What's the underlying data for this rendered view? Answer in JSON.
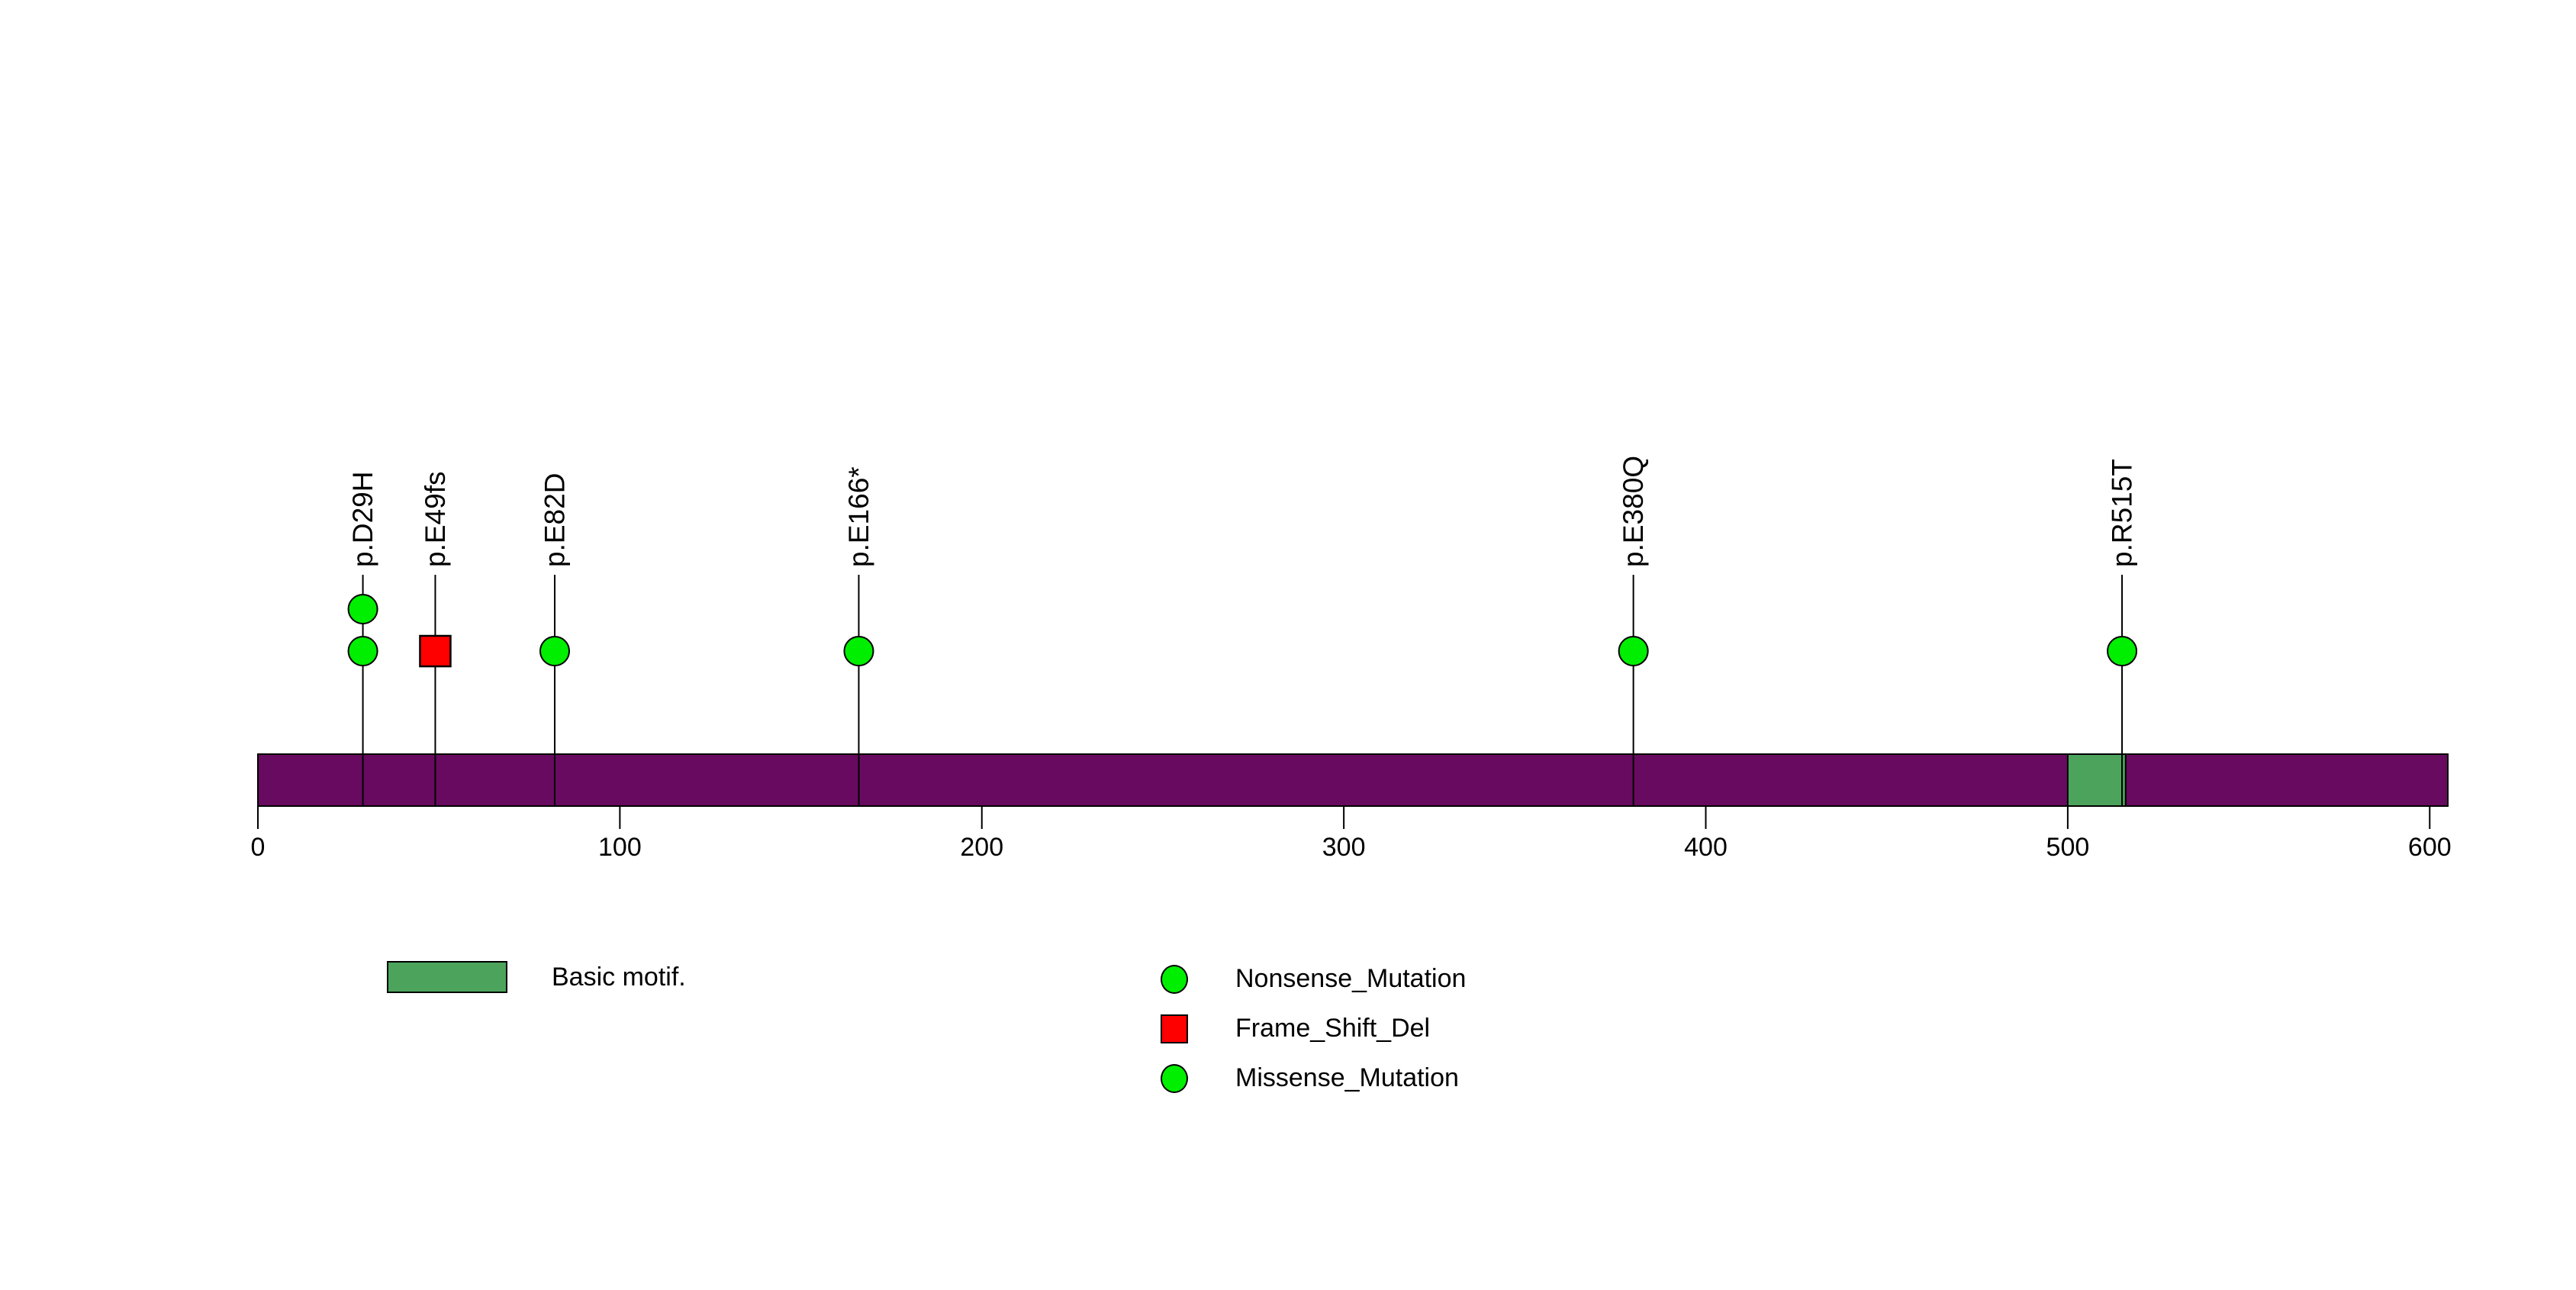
{
  "chart_data": {
    "type": "lollipop",
    "title": "",
    "xlabel": "",
    "ylabel": "",
    "axis": {
      "min": 0,
      "max": 605,
      "ticks": [
        0,
        100,
        200,
        300,
        400,
        500,
        600
      ],
      "tick_labels": [
        "0",
        "100",
        "200",
        "300",
        "400",
        "500",
        "600"
      ]
    },
    "protein": {
      "length": 605,
      "backbone_color": "#680A5F",
      "domains": [
        {
          "name": "Basic motif.",
          "start": 500,
          "end": 516,
          "color": "#4CA45C"
        }
      ]
    },
    "mutations": [
      {
        "label": "p.D29H",
        "position": 29,
        "stack": [
          {
            "shape": "circle",
            "color": "#00EE00"
          },
          {
            "shape": "circle",
            "color": "#00EE00"
          }
        ]
      },
      {
        "label": "p.E49fs",
        "position": 49,
        "stack": [
          {
            "shape": "square",
            "color": "#FF0000"
          }
        ]
      },
      {
        "label": "p.E82D",
        "position": 82,
        "stack": [
          {
            "shape": "circle",
            "color": "#00EE00"
          }
        ]
      },
      {
        "label": "p.E166*",
        "position": 166,
        "stack": [
          {
            "shape": "circle",
            "color": "#00EE00"
          }
        ]
      },
      {
        "label": "p.E380Q",
        "position": 380,
        "stack": [
          {
            "shape": "circle",
            "color": "#00EE00"
          }
        ]
      },
      {
        "label": "p.R515T",
        "position": 515,
        "stack": [
          {
            "shape": "circle",
            "color": "#00EE00"
          }
        ]
      }
    ],
    "legend": {
      "domains": [
        {
          "label": "Basic motif.",
          "color": "#4CA45C"
        }
      ],
      "mutation_types": [
        {
          "label": "Nonsense_Mutation",
          "shape": "circle",
          "color": "#00EE00"
        },
        {
          "label": "Frame_Shift_Del",
          "shape": "square",
          "color": "#FF0000"
        },
        {
          "label": "Missense_Mutation",
          "shape": "circle",
          "color": "#00EE00"
        }
      ]
    },
    "marker_outline_color": "#000000",
    "stem_color": "#000000"
  }
}
